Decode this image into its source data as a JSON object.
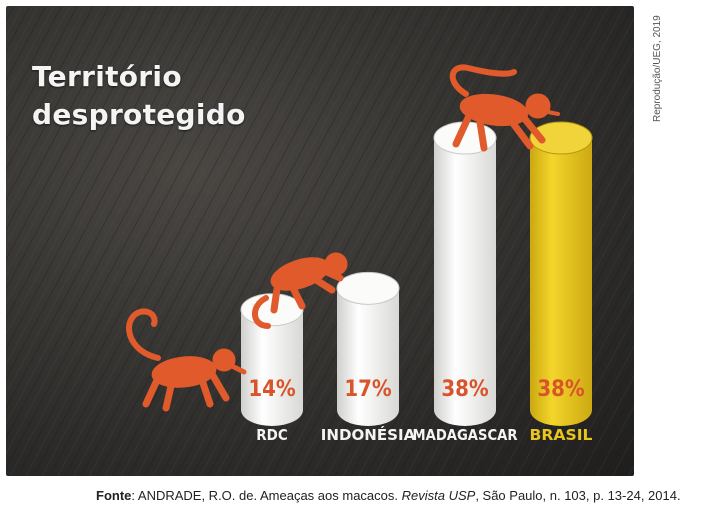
{
  "chart_data": {
    "type": "bar",
    "title_lines": [
      "Território",
      "desprotegido"
    ],
    "categories": [
      "RDC",
      "INDONÉSIA",
      "MADAGASCAR",
      "BRASIL"
    ],
    "values": [
      14,
      17,
      38,
      38
    ],
    "value_labels": [
      "14%",
      "17%",
      "38%",
      "38%"
    ],
    "highlight_category": "BRASIL",
    "ylim": [
      0,
      40
    ]
  },
  "colors": {
    "bar_default": "#f2f2f0",
    "bar_highlight": "#e7c51d",
    "value_label": "#d9542b",
    "category_label": "#f4f4f4",
    "highlight_label": "#e7c51d",
    "monkey": "#e05a2b"
  },
  "decor": [
    "monkey-illustration-left",
    "monkey-illustration-middle",
    "monkey-illustration-top"
  ],
  "credit": "Reprodução/UEG, 2019",
  "source": {
    "lead": "Fonte",
    "authors": ": ANDRADE, R.O. de. Ameaças aos macacos. ",
    "journal": "Revista USP",
    "rest": ", São Paulo, n. 103, p. 13-24, 2014."
  }
}
